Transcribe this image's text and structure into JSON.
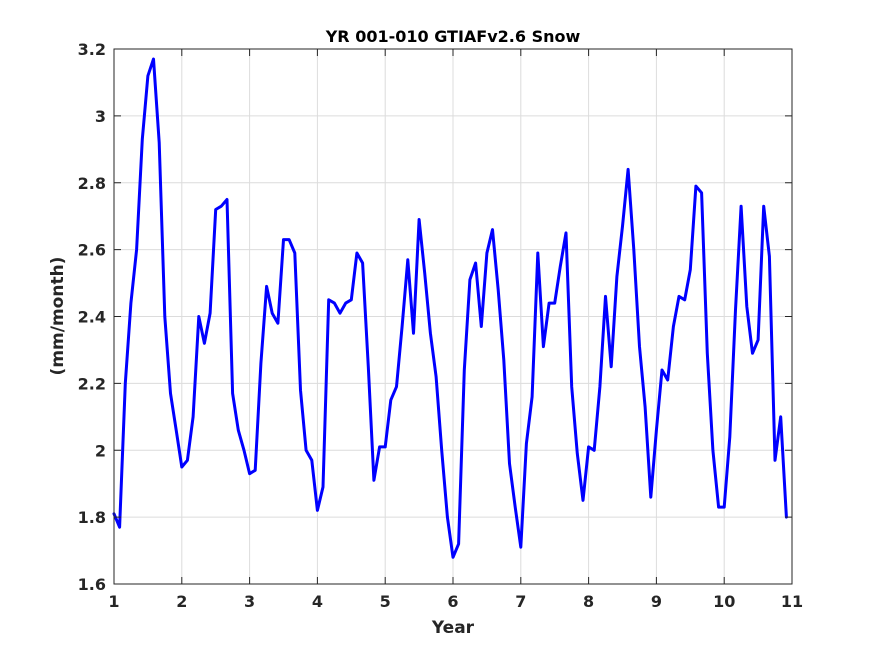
{
  "chart_data": {
    "type": "line",
    "title": "YR 001-010 GTIAFv2.6 Snow",
    "xlabel": "Year",
    "ylabel": "(mm/month)",
    "xlim": [
      1,
      11
    ],
    "ylim": [
      1.6,
      3.2
    ],
    "grid": true,
    "xticks": [
      "1",
      "2",
      "3",
      "4",
      "5",
      "6",
      "7",
      "8",
      "9",
      "10",
      "11"
    ],
    "yticks": [
      "1.6",
      "1.8",
      "2",
      "2.2",
      "2.4",
      "2.6",
      "2.8",
      "3",
      "3.2"
    ],
    "line_color": "#0000ff",
    "series": [
      {
        "x": [
          1.0,
          1.083,
          1.167,
          1.25,
          1.333,
          1.417,
          1.5,
          1.583,
          1.667,
          1.75,
          1.833,
          1.917,
          2.0,
          2.083,
          2.167,
          2.25,
          2.333,
          2.417,
          2.5,
          2.583,
          2.667,
          2.75,
          2.833,
          2.917,
          3.0,
          3.083,
          3.167,
          3.25,
          3.333,
          3.417,
          3.5,
          3.583,
          3.667,
          3.75,
          3.833,
          3.917,
          4.0,
          4.083,
          4.167,
          4.25,
          4.333,
          4.417,
          4.5,
          4.583,
          4.667,
          4.75,
          4.833,
          4.917,
          5.0,
          5.083,
          5.167,
          5.25,
          5.333,
          5.417,
          5.5,
          5.583,
          5.667,
          5.75,
          5.833,
          5.917,
          6.0,
          6.083,
          6.167,
          6.25,
          6.333,
          6.417,
          6.5,
          6.583,
          6.667,
          6.75,
          6.833,
          6.917,
          7.0,
          7.083,
          7.167,
          7.25,
          7.333,
          7.417,
          7.5,
          7.583,
          7.667,
          7.75,
          7.833,
          7.917,
          8.0,
          8.083,
          8.167,
          8.25,
          8.333,
          8.417,
          8.5,
          8.583,
          8.667,
          8.75,
          8.833,
          8.917,
          9.0,
          9.083,
          9.167,
          9.25,
          9.333,
          9.417,
          9.5,
          9.583,
          9.667,
          9.75,
          9.833,
          9.917,
          10.0,
          10.083,
          10.167,
          10.25,
          10.333,
          10.417,
          10.5,
          10.583,
          10.667,
          10.75,
          10.833,
          10.917
        ],
        "y": [
          1.81,
          1.77,
          2.2,
          2.44,
          2.6,
          2.93,
          3.12,
          3.17,
          2.92,
          2.4,
          2.17,
          2.06,
          1.95,
          1.97,
          2.1,
          2.4,
          2.32,
          2.41,
          2.72,
          2.73,
          2.75,
          2.17,
          2.06,
          2.0,
          1.93,
          1.94,
          2.26,
          2.49,
          2.41,
          2.38,
          2.63,
          2.63,
          2.59,
          2.18,
          2.0,
          1.97,
          1.82,
          1.89,
          2.45,
          2.44,
          2.41,
          2.44,
          2.45,
          2.59,
          2.56,
          2.25,
          1.91,
          2.01,
          2.01,
          2.15,
          2.19,
          2.37,
          2.57,
          2.35,
          2.69,
          2.53,
          2.35,
          2.22,
          2.0,
          1.8,
          1.68,
          1.72,
          2.24,
          2.51,
          2.56,
          2.37,
          2.59,
          2.66,
          2.48,
          2.27,
          1.96,
          1.83,
          1.71,
          2.02,
          2.16,
          2.59,
          2.31,
          2.44,
          2.44,
          2.55,
          2.65,
          2.19,
          1.99,
          1.85,
          2.01,
          2.0,
          2.19,
          2.46,
          2.25,
          2.52,
          2.67,
          2.84,
          2.6,
          2.31,
          2.13,
          1.86,
          2.06,
          2.24,
          2.21,
          2.37,
          2.46,
          2.45,
          2.54,
          2.79,
          2.77,
          2.29,
          2.0,
          1.83,
          1.83,
          2.04,
          2.42,
          2.73,
          2.43,
          2.29,
          2.33,
          2.73,
          2.58,
          1.97,
          2.1,
          1.8
        ]
      }
    ]
  }
}
